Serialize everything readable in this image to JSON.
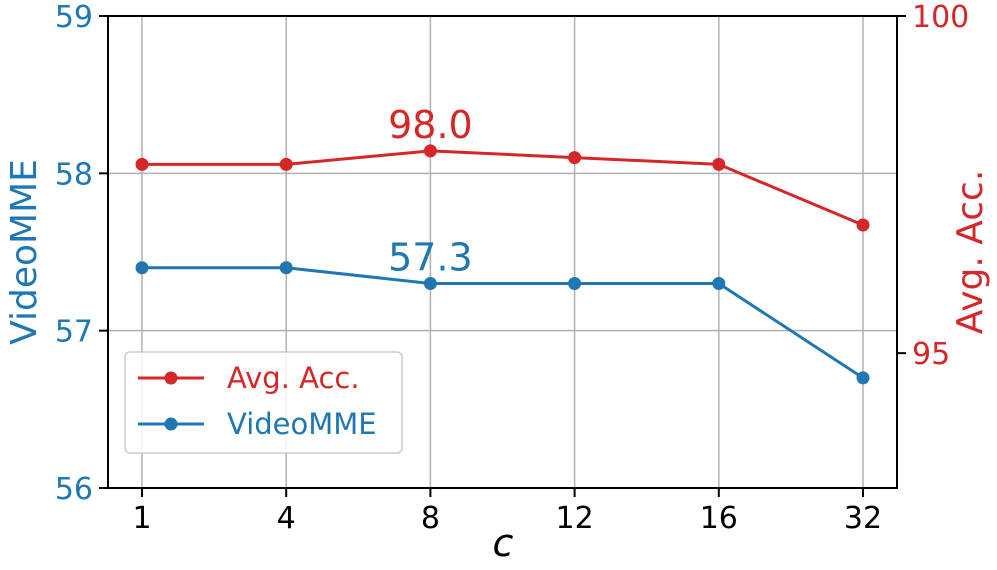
{
  "chart_data": {
    "type": "line",
    "categories": [
      "1",
      "4",
      "8",
      "12",
      "16",
      "32"
    ],
    "xlabel": "c",
    "left_axis": {
      "label": "VideoMME",
      "ylim": [
        56,
        59
      ],
      "ticks": [
        "56",
        "57",
        "58",
        "59"
      ],
      "color": "#1f77b4"
    },
    "right_axis": {
      "label": "Avg. Acc.",
      "ylim": [
        93.0,
        100.0
      ],
      "ticks": [
        "95",
        "100"
      ],
      "color": "#d62728"
    },
    "series": [
      {
        "name": "Avg. Acc.",
        "axis": "right",
        "color": "#d62728",
        "values": [
          97.8,
          97.8,
          98.0,
          97.9,
          97.8,
          96.9
        ]
      },
      {
        "name": "VideoMME",
        "axis": "left",
        "color": "#1f77b4",
        "values": [
          57.4,
          57.4,
          57.3,
          57.3,
          57.3,
          56.7
        ]
      }
    ],
    "annotations": [
      {
        "text": "98.0",
        "series": "Avg. Acc.",
        "category": "8",
        "color": "#d62728"
      },
      {
        "text": "57.3",
        "series": "VideoMME",
        "category": "8",
        "color": "#1f77b4"
      }
    ],
    "grid": true,
    "legend": {
      "position": "lower-left",
      "entries": [
        "Avg. Acc.",
        "VideoMME"
      ]
    }
  }
}
